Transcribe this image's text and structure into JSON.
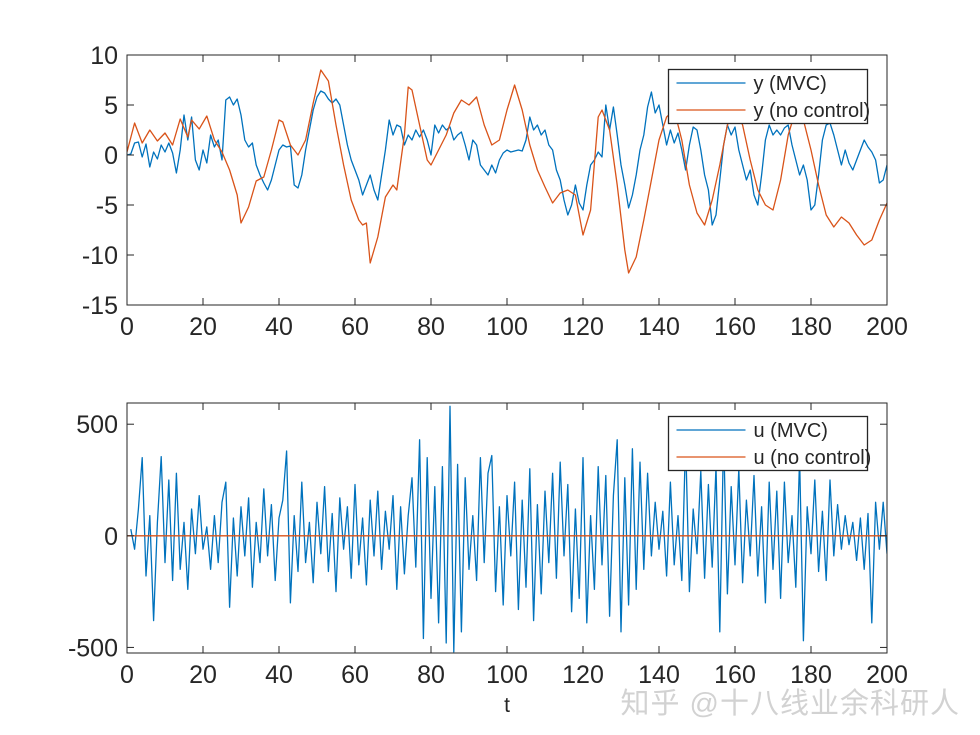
{
  "figure": {
    "background": "#ffffff"
  },
  "watermark": {
    "text": "知乎 @十八线业余科研人"
  },
  "palette": {
    "blue": "#0072BD",
    "orange": "#D95319",
    "axis": "#262626"
  },
  "chart_data": [
    {
      "type": "line",
      "title": "",
      "xlabel": "",
      "ylabel": "",
      "xlim": [
        0,
        200
      ],
      "ylim": [
        -15,
        10
      ],
      "xticks": [
        0,
        20,
        40,
        60,
        80,
        100,
        120,
        140,
        160,
        180,
        200
      ],
      "yticks": [
        -15,
        -10,
        -5,
        0,
        5,
        10
      ],
      "grid": false,
      "legend": {
        "position": "northeast",
        "entries": [
          "y (MVC)",
          "y (no control)"
        ]
      },
      "series": [
        {
          "name": "y (MVC)",
          "color": "#0072BD",
          "x0": 0,
          "dx": 1,
          "values": [
            0.0,
            0.1,
            1.2,
            1.3,
            -0.2,
            1.1,
            -1.2,
            0.3,
            -0.4,
            1.0,
            0.3,
            1.2,
            0.2,
            -1.8,
            0.5,
            4.0,
            1.5,
            3.8,
            -0.5,
            -1.5,
            0.5,
            -0.8,
            2.0,
            0.8,
            1.5,
            -0.5,
            5.5,
            5.8,
            5.0,
            5.6,
            4.0,
            1.5,
            0.8,
            1.2,
            -1.0,
            -2.0,
            -2.8,
            -3.5,
            -2.5,
            -1.0,
            0.5,
            1.0,
            0.8,
            0.9,
            -3.0,
            -3.3,
            -2.0,
            0.5,
            2.5,
            4.5,
            5.8,
            6.4,
            6.2,
            5.6,
            5.2,
            5.6,
            5.0,
            3.0,
            1.0,
            -0.5,
            -1.5,
            -2.5,
            -4.0,
            -3.0,
            -2.0,
            -3.5,
            -4.5,
            -2.0,
            0.5,
            3.5,
            2.0,
            3.0,
            2.8,
            1.0,
            2.0,
            1.5,
            2.5,
            1.8,
            2.5,
            1.5,
            0.0,
            3.0,
            2.2,
            3.0,
            2.5,
            2.8,
            1.5,
            2.0,
            2.3,
            1.0,
            -0.5,
            1.5,
            1.0,
            -1.0,
            -1.5,
            -2.0,
            -1.0,
            -1.8,
            -0.5,
            0.2,
            0.5,
            0.3,
            0.4,
            0.5,
            0.4,
            1.5,
            3.8,
            2.5,
            3.0,
            2.0,
            2.5,
            1.0,
            0.5,
            -1.5,
            -2.5,
            -4.5,
            -6.0,
            -5.0,
            -3.0,
            -4.8,
            -5.5,
            -3.0,
            -1.0,
            -0.5,
            0.3,
            -0.2,
            5.0,
            2.5,
            4.8,
            2.0,
            -1.0,
            -3.0,
            -5.3,
            -4.0,
            -2.0,
            0.5,
            2.0,
            4.8,
            6.3,
            4.2,
            5.0,
            3.0,
            1.0,
            2.5,
            1.2,
            2.2,
            0.5,
            -1.5,
            1.0,
            2.8,
            2.5,
            0.5,
            -2.0,
            -3.5,
            -7.0,
            -6.0,
            -2.5,
            1.0,
            3.0,
            2.0,
            2.8,
            0.5,
            -1.0,
            -2.5,
            -1.5,
            -4.0,
            -5.0,
            -2.0,
            1.5,
            3.0,
            2.0,
            2.5,
            2.0,
            2.7,
            3.0,
            1.0,
            -0.5,
            -2.0,
            -1.0,
            -2.5,
            -5.5,
            -5.0,
            -2.0,
            1.5,
            3.0,
            3.2,
            2.0,
            0.5,
            -1.0,
            0.5,
            -0.8,
            -1.5,
            -0.5,
            0.5,
            1.5,
            0.8,
            0.3,
            -0.5,
            -2.8,
            -2.5,
            -1.0
          ]
        },
        {
          "name": "y (no control)",
          "color": "#D95319",
          "points": [
            [
              0,
              0.3
            ],
            [
              2,
              3.2
            ],
            [
              4,
              1.2
            ],
            [
              6,
              2.5
            ],
            [
              8,
              1.4
            ],
            [
              10,
              2.2
            ],
            [
              12,
              1.0
            ],
            [
              14,
              3.6
            ],
            [
              16,
              1.8
            ],
            [
              17,
              3.5
            ],
            [
              19,
              2.6
            ],
            [
              21,
              3.9
            ],
            [
              23,
              1.5
            ],
            [
              25,
              0.3
            ],
            [
              27,
              -1.5
            ],
            [
              29,
              -4.0
            ],
            [
              30,
              -6.8
            ],
            [
              32,
              -5.2
            ],
            [
              34,
              -2.6
            ],
            [
              36,
              -2.2
            ],
            [
              38,
              0.5
            ],
            [
              40,
              3.5
            ],
            [
              41,
              3.3
            ],
            [
              43,
              1.0
            ],
            [
              45,
              0.0
            ],
            [
              47,
              1.5
            ],
            [
              49,
              5.2
            ],
            [
              51,
              8.5
            ],
            [
              53,
              7.4
            ],
            [
              55,
              3.0
            ],
            [
              57,
              -1.0
            ],
            [
              59,
              -4.5
            ],
            [
              61,
              -6.5
            ],
            [
              62,
              -7.0
            ],
            [
              63,
              -6.8
            ],
            [
              64,
              -10.8
            ],
            [
              66,
              -8.2
            ],
            [
              68,
              -4.2
            ],
            [
              70,
              -3.0
            ],
            [
              71,
              -3.5
            ],
            [
              73,
              2.0
            ],
            [
              74,
              6.8
            ],
            [
              75,
              6.5
            ],
            [
              77,
              3.0
            ],
            [
              79,
              -0.5
            ],
            [
              80,
              -1.0
            ],
            [
              82,
              0.5
            ],
            [
              84,
              2.0
            ],
            [
              86,
              4.2
            ],
            [
              88,
              5.5
            ],
            [
              90,
              5.0
            ],
            [
              92,
              5.8
            ],
            [
              94,
              3.0
            ],
            [
              96,
              1.0
            ],
            [
              98,
              1.5
            ],
            [
              100,
              4.5
            ],
            [
              102,
              7.0
            ],
            [
              104,
              4.5
            ],
            [
              106,
              1.0
            ],
            [
              108,
              -1.5
            ],
            [
              110,
              -3.2
            ],
            [
              112,
              -4.8
            ],
            [
              114,
              -3.8
            ],
            [
              116,
              -3.5
            ],
            [
              118,
              -4.0
            ],
            [
              120,
              -8.0
            ],
            [
              122,
              -5.5
            ],
            [
              124,
              3.8
            ],
            [
              125,
              4.5
            ],
            [
              127,
              2.5
            ],
            [
              129,
              -3.0
            ],
            [
              131,
              -9.5
            ],
            [
              132,
              -11.8
            ],
            [
              134,
              -10.2
            ],
            [
              136,
              -6.5
            ],
            [
              138,
              -2.5
            ],
            [
              140,
              1.5
            ],
            [
              142,
              3.8
            ],
            [
              144,
              4.5
            ],
            [
              146,
              1.5
            ],
            [
              148,
              -3.0
            ],
            [
              150,
              -5.8
            ],
            [
              152,
              -7.0
            ],
            [
              154,
              -4.5
            ],
            [
              156,
              -1.0
            ],
            [
              158,
              3.0
            ],
            [
              160,
              4.5
            ],
            [
              162,
              3.0
            ],
            [
              164,
              -0.5
            ],
            [
              166,
              -3.5
            ],
            [
              168,
              -5.0
            ],
            [
              170,
              -5.5
            ],
            [
              172,
              -2.5
            ],
            [
              174,
              2.0
            ],
            [
              176,
              4.5
            ],
            [
              178,
              3.5
            ],
            [
              180,
              0.5
            ],
            [
              182,
              -3.0
            ],
            [
              184,
              -6.0
            ],
            [
              186,
              -7.2
            ],
            [
              188,
              -6.2
            ],
            [
              190,
              -6.8
            ],
            [
              192,
              -8.0
            ],
            [
              194,
              -9.0
            ],
            [
              196,
              -8.5
            ],
            [
              198,
              -6.5
            ],
            [
              200,
              -4.8
            ]
          ]
        }
      ]
    },
    {
      "type": "line",
      "title": "",
      "xlabel": "t",
      "ylabel": "",
      "xlim": [
        0,
        200
      ],
      "ylim": [
        -525,
        595
      ],
      "xticks": [
        0,
        20,
        40,
        60,
        80,
        100,
        120,
        140,
        160,
        180,
        200
      ],
      "yticks": [
        -500,
        0,
        500
      ],
      "grid": false,
      "legend": {
        "position": "northeast",
        "entries": [
          "u (MVC)",
          "u (no control)"
        ]
      },
      "series": [
        {
          "name": "u (MVC)",
          "color": "#0072BD",
          "x0": 1,
          "dx": 1,
          "values": [
            30,
            -60,
            120,
            350,
            -180,
            90,
            -380,
            60,
            355,
            -120,
            250,
            -200,
            280,
            -150,
            60,
            -240,
            120,
            -80,
            180,
            -60,
            40,
            -150,
            90,
            -120,
            150,
            240,
            -320,
            80,
            -180,
            130,
            -90,
            170,
            -230,
            60,
            -120,
            210,
            -90,
            140,
            -200,
            80,
            160,
            380,
            -300,
            90,
            -160,
            240,
            -120,
            60,
            -210,
            150,
            -80,
            220,
            -160,
            100,
            -250,
            170,
            -60,
            130,
            -190,
            230,
            -130,
            80,
            -220,
            160,
            -90,
            200,
            -150,
            110,
            -60,
            180,
            -240,
            130,
            -170,
            90,
            260,
            -140,
            430,
            -460,
            350,
            -280,
            220,
            -390,
            310,
            -480,
            580,
            -520,
            320,
            -430,
            260,
            -150,
            90,
            -200,
            350,
            -120,
            280,
            360,
            -250,
            130,
            -310,
            180,
            -90,
            240,
            -330,
            160,
            -230,
            300,
            -380,
            140,
            -260,
            200,
            -120,
            280,
            -190,
            330,
            -90,
            230,
            -340,
            120,
            -280,
            350,
            -390,
            90,
            -240,
            310,
            -130,
            270,
            -360,
            180,
            430,
            -430,
            260,
            -310,
            390,
            -240,
            330,
            -150,
            280,
            -90,
            150,
            -60,
            110,
            -180,
            240,
            -130,
            90,
            -200,
            430,
            -250,
            120,
            -80,
            290,
            -190,
            230,
            -140,
            310,
            -430,
            450,
            -260,
            220,
            -130,
            300,
            -210,
            160,
            -90,
            270,
            -180,
            130,
            -300,
            240,
            -150,
            200,
            -280,
            240,
            -120,
            90,
            -230,
            350,
            -470,
            130,
            -80,
            250,
            -160,
            110,
            -200,
            250,
            -90,
            140,
            -60,
            90,
            -40,
            60,
            -110,
            80,
            -150,
            100,
            -390,
            150,
            -60,
            150,
            -80
          ]
        },
        {
          "name": "u (no control)",
          "color": "#D95319",
          "x0": 0,
          "dx": 200,
          "values": [
            0,
            0
          ]
        }
      ]
    }
  ]
}
